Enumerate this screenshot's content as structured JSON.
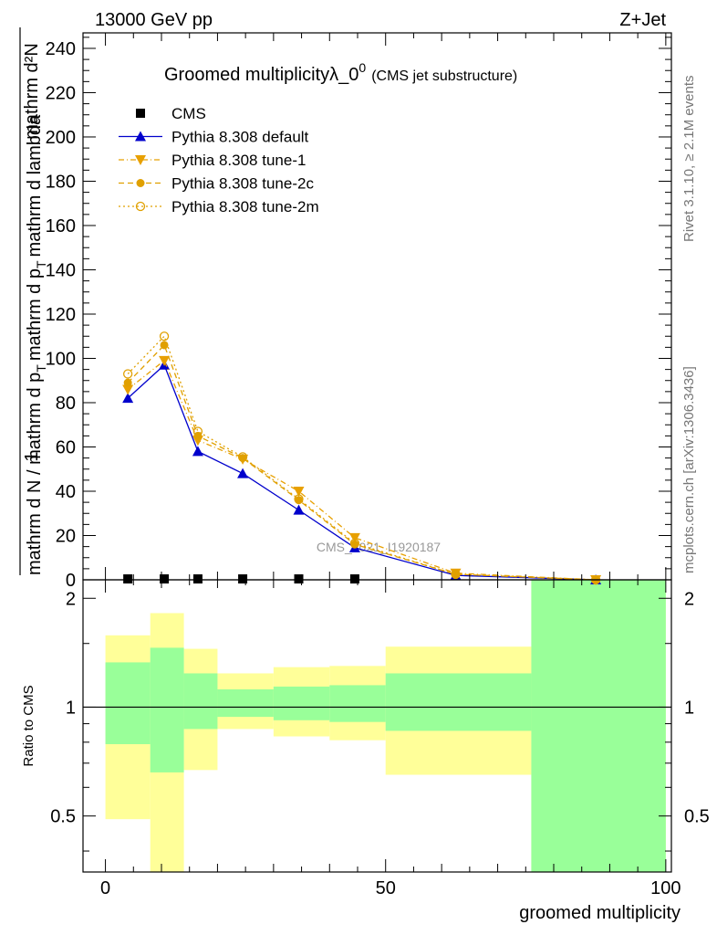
{
  "header": {
    "left": "13000 GeV pp",
    "right": "Z+Jet"
  },
  "side_labels": {
    "rivet": "Rivet 3.1.10, ≥ 2.1M events",
    "mcplots": "mcplots.cern.ch [arXiv:1306.3436]"
  },
  "chart_data": [
    {
      "type": "line",
      "title": "Groomed multiplicityλ_0^0 (CMS jet substructure)",
      "title_main": "Groomed multiplicityλ_0",
      "title_sup": "0",
      "title_sub": "(CMS jet substructure)",
      "watermark": "CMS_2021_I1920187",
      "ylabel": {
        "numerator_lead": "1",
        "numerator": "mathrm d²N",
        "denominator_lead": "mathrm d N / mathrm d p",
        "denominator_sub": "T",
        "denominator_rest": "mathrm d p",
        "denominator_sub2": "T",
        "denominator_tail": "mathrm d lambda"
      },
      "xlim": [
        -4,
        101
      ],
      "ylim": [
        0,
        247
      ],
      "yticks": [
        0,
        20,
        40,
        60,
        80,
        100,
        120,
        140,
        160,
        180,
        200,
        220,
        240
      ],
      "ytick_labels": [
        "0",
        "20",
        "40",
        "60",
        "80",
        "100",
        "120",
        "140",
        "160",
        "180",
        "200",
        "220",
        "240"
      ],
      "legend_position": "top-left",
      "series": [
        {
          "name": "CMS",
          "style": "data",
          "color": "#000000",
          "x": [
            4,
            10.5,
            16.5,
            24.5,
            34.5,
            44.5
          ],
          "y": [
            0.4,
            0.4,
            0.4,
            0.4,
            0.4,
            0.4
          ]
        },
        {
          "name": "Pythia 8.308 default",
          "style": "solid",
          "marker": "triangle-up",
          "color": "#0000cc",
          "x": [
            4,
            10.5,
            16.5,
            24.5,
            34.5,
            44.5,
            62.5,
            87.5
          ],
          "y": [
            82,
            97,
            58,
            48,
            31.5,
            14.5,
            2,
            0
          ]
        },
        {
          "name": "Pythia 8.308 tune-1",
          "style": "dashdot",
          "marker": "triangle-down",
          "color": "#e8a000",
          "x": [
            4,
            10.5,
            16.5,
            24.5,
            34.5,
            44.5,
            62.5,
            87.5
          ],
          "y": [
            86,
            99,
            63,
            54.5,
            40,
            19,
            3,
            0
          ]
        },
        {
          "name": "Pythia 8.308 tune-2c",
          "style": "dashed",
          "marker": "circle",
          "color": "#e0a000",
          "x": [
            4,
            10.5,
            16.5,
            24.5,
            34.5,
            44.5,
            62.5,
            87.5
          ],
          "y": [
            89,
            106,
            65,
            55,
            36,
            16,
            2.5,
            0
          ]
        },
        {
          "name": "Pythia 8.308 tune-2m",
          "style": "dotted",
          "marker": "open-circle",
          "color": "#e0a000",
          "x": [
            4,
            10.5,
            16.5,
            24.5,
            34.5,
            44.5,
            62.5,
            87.5
          ],
          "y": [
            93,
            110,
            67,
            55.5,
            36.5,
            16.5,
            2.5,
            0
          ]
        }
      ]
    },
    {
      "type": "area",
      "ylabel": "Ratio to CMS",
      "xlabel": "groomed multiplicity",
      "xlim": [
        -4,
        101
      ],
      "ylim": [
        0.35,
        2.25
      ],
      "xticks": [
        0,
        50,
        100
      ],
      "xtick_labels": [
        "0",
        "50",
        "100"
      ],
      "yticks": [
        0.5,
        1,
        2
      ],
      "ytick_labels": [
        "0.5",
        "1",
        "2"
      ],
      "reference_line": 1,
      "bands": {
        "bin_edges": [
          0,
          8,
          14,
          20,
          30,
          40,
          50,
          76,
          100
        ],
        "yellow": {
          "color": "#ffff99",
          "lo": [
            0.49,
            0.35,
            0.67,
            0.87,
            0.83,
            0.81,
            0.65,
            0.35
          ],
          "hi": [
            1.58,
            1.82,
            1.45,
            1.24,
            1.29,
            1.3,
            1.47,
            2.25
          ]
        },
        "green": {
          "color": "#99ff99",
          "lo": [
            0.79,
            0.66,
            0.87,
            0.94,
            0.92,
            0.91,
            0.86,
            0.35
          ],
          "hi": [
            1.33,
            1.46,
            1.24,
            1.12,
            1.14,
            1.15,
            1.24,
            2.25
          ]
        }
      }
    }
  ]
}
